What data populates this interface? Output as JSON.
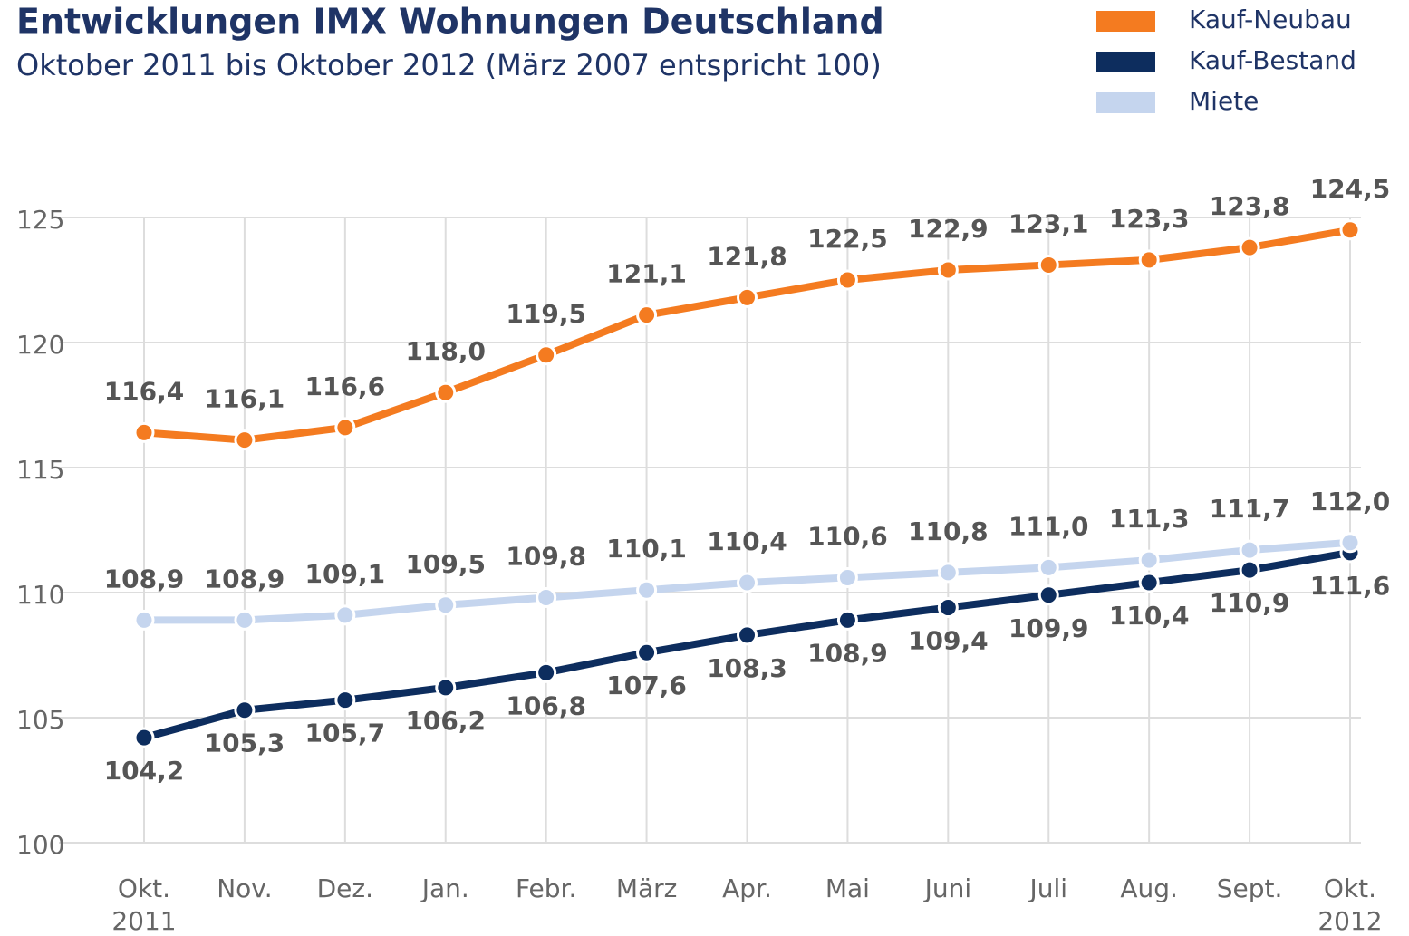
{
  "chart_data": {
    "type": "line",
    "title": "Entwicklungen IMX Wohnungen Deutschland",
    "subtitle": "Oktober 2011 bis Oktober 2012 (März 2007 entspricht 100)",
    "categories": [
      "Okt. 2011",
      "Nov.",
      "Dez.",
      "Jan.",
      "Febr.",
      "März",
      "Apr.",
      "Mai",
      "Juni",
      "Juli",
      "Aug.",
      "Sept.",
      "Okt. 2012"
    ],
    "series": [
      {
        "name": "Kauf-Neubau",
        "color": "#f47b20",
        "label_side": "above",
        "values": [
          116.4,
          116.1,
          116.6,
          118.0,
          119.5,
          121.1,
          121.8,
          122.5,
          122.9,
          123.1,
          123.3,
          123.8,
          124.5
        ],
        "value_labels": [
          "116,4",
          "116,1",
          "116,6",
          "118,0",
          "119,5",
          "121,1",
          "121,8",
          "122,5",
          "122,9",
          "123,1",
          "123,3",
          "123,8",
          "124,5"
        ]
      },
      {
        "name": "Kauf-Bestand",
        "color": "#0d2d5e",
        "label_side": "below",
        "values": [
          104.2,
          105.3,
          105.7,
          106.2,
          106.8,
          107.6,
          108.3,
          108.9,
          109.4,
          109.9,
          110.4,
          110.9,
          111.6
        ],
        "value_labels": [
          "104,2",
          "105,3",
          "105,7",
          "106,2",
          "106,8",
          "107,6",
          "108,3",
          "108,9",
          "109,4",
          "109,9",
          "110,4",
          "110,9",
          "111,6"
        ]
      },
      {
        "name": "Miete",
        "color": "#c5d5ee",
        "label_side": "above",
        "values": [
          108.9,
          108.9,
          109.1,
          109.5,
          109.8,
          110.1,
          110.4,
          110.6,
          110.8,
          111.0,
          111.3,
          111.7,
          112.0
        ],
        "value_labels": [
          "108,9",
          "108,9",
          "109,1",
          "109,5",
          "109,8",
          "110,1",
          "110,4",
          "110,6",
          "110,8",
          "111,0",
          "111,3",
          "111,7",
          "112,0"
        ]
      }
    ],
    "ylim": [
      100,
      125
    ],
    "yticks": [
      100,
      105,
      110,
      115,
      120,
      125
    ],
    "grid": true
  }
}
